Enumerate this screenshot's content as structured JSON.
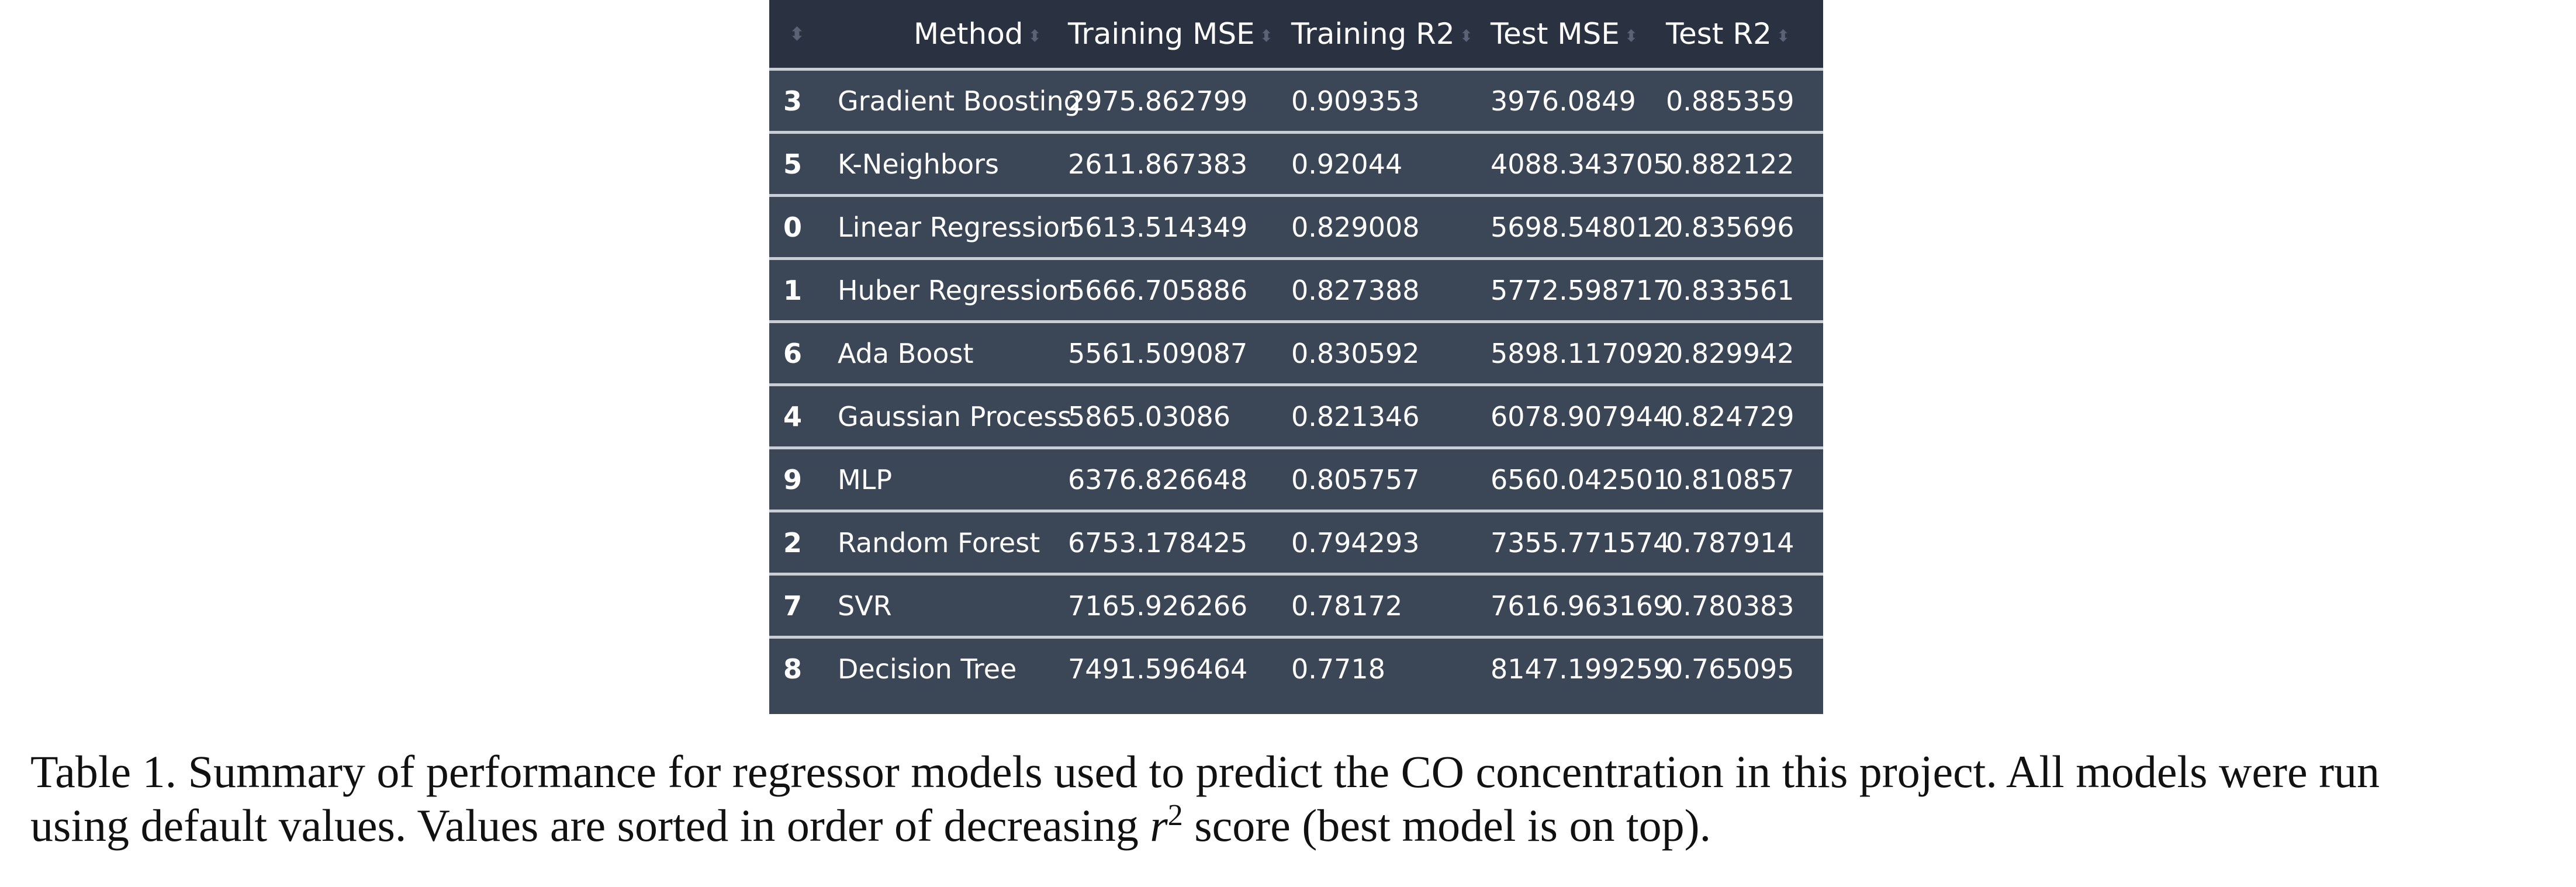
{
  "table": {
    "columns": [
      "",
      "Method",
      "Training MSE",
      "Training R2",
      "Test MSE",
      "Test R2"
    ],
    "sort_glyph": "⬍",
    "rows": [
      {
        "idx": "3",
        "method": "Gradient Boosting",
        "train_mse": "2975.862799",
        "train_r2": "0.909353",
        "test_mse": "3976.0849",
        "test_r2": "0.885359"
      },
      {
        "idx": "5",
        "method": "K-Neighbors",
        "train_mse": "2611.867383",
        "train_r2": "0.92044",
        "test_mse": "4088.343705",
        "test_r2": "0.882122"
      },
      {
        "idx": "0",
        "method": "Linear Regression",
        "train_mse": "5613.514349",
        "train_r2": "0.829008",
        "test_mse": "5698.548012",
        "test_r2": "0.835696"
      },
      {
        "idx": "1",
        "method": "Huber Regression",
        "train_mse": "5666.705886",
        "train_r2": "0.827388",
        "test_mse": "5772.598717",
        "test_r2": "0.833561"
      },
      {
        "idx": "6",
        "method": "Ada Boost",
        "train_mse": "5561.509087",
        "train_r2": "0.830592",
        "test_mse": "5898.117092",
        "test_r2": "0.829942"
      },
      {
        "idx": "4",
        "method": "Gaussian Process",
        "train_mse": "5865.03086",
        "train_r2": "0.821346",
        "test_mse": "6078.907944",
        "test_r2": "0.824729"
      },
      {
        "idx": "9",
        "method": "MLP",
        "train_mse": "6376.826648",
        "train_r2": "0.805757",
        "test_mse": "6560.042501",
        "test_r2": "0.810857"
      },
      {
        "idx": "2",
        "method": "Random Forest",
        "train_mse": "6753.178425",
        "train_r2": "0.794293",
        "test_mse": "7355.771574",
        "test_r2": "0.787914"
      },
      {
        "idx": "7",
        "method": "SVR",
        "train_mse": "7165.926266",
        "train_r2": "0.78172",
        "test_mse": "7616.963169",
        "test_r2": "0.780383"
      },
      {
        "idx": "8",
        "method": "Decision Tree",
        "train_mse": "7491.596464",
        "train_r2": "0.7718",
        "test_mse": "8147.199259",
        "test_r2": "0.765095"
      }
    ]
  },
  "caption": {
    "line1": "Table 1. Summary of performance for regressor models used  to predict the CO concentration in this project. All models were run",
    "line2_pre": "using default values.  Values are sorted in order of decreasing ",
    "math_var": "r",
    "math_sup": "2",
    "line2_post": " score (best model is on top)."
  }
}
